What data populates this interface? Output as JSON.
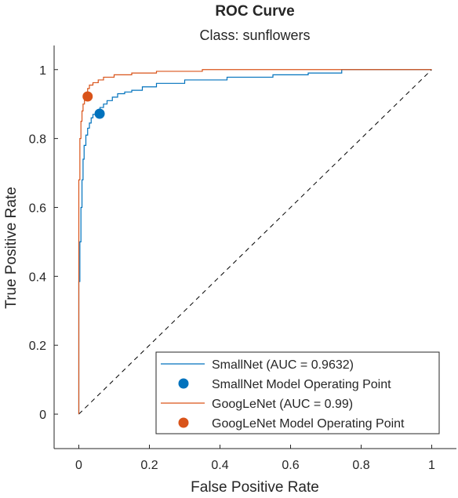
{
  "chart_data": {
    "type": "line",
    "title": "ROC Curve",
    "subtitle": "Class: sunflowers",
    "xlabel": "False Positive Rate",
    "ylabel": "True Positive Rate",
    "xlim": [
      -0.07,
      1.07
    ],
    "ylim": [
      -0.1,
      1.07
    ],
    "xticks": [
      0,
      0.2,
      0.4,
      0.6,
      0.8,
      1
    ],
    "xtick_labels": [
      "0",
      "0.2",
      "0.4",
      "0.6",
      "0.8",
      "1"
    ],
    "yticks": [
      0,
      0.2,
      0.4,
      0.6,
      0.8,
      1
    ],
    "ytick_labels": [
      "0",
      "0.2",
      "0.4",
      "0.6",
      "0.8",
      "1"
    ],
    "grid": false,
    "legend_position": "bottom-right",
    "reference_line": {
      "x": [
        0,
        1
      ],
      "y": [
        0,
        1
      ],
      "style": "dashed",
      "color": "#000000"
    },
    "series": [
      {
        "name": "SmallNet (AUC = 0.9632)",
        "kind": "line",
        "color": "#0072BD",
        "x": [
          0,
          0,
          0.003,
          0.003,
          0.006,
          0.006,
          0.009,
          0.009,
          0.012,
          0.012,
          0.015,
          0.015,
          0.02,
          0.02,
          0.025,
          0.025,
          0.03,
          0.03,
          0.035,
          0.035,
          0.04,
          0.04,
          0.05,
          0.05,
          0.06,
          0.06,
          0.07,
          0.07,
          0.08,
          0.08,
          0.095,
          0.095,
          0.11,
          0.11,
          0.13,
          0.13,
          0.15,
          0.15,
          0.18,
          0.18,
          0.22,
          0.22,
          0.3,
          0.3,
          0.42,
          0.42,
          0.55,
          0.55,
          0.65,
          0.65,
          0.745,
          0.745,
          1
        ],
        "y": [
          0,
          0.385,
          0.385,
          0.5,
          0.5,
          0.6,
          0.6,
          0.68,
          0.68,
          0.74,
          0.74,
          0.78,
          0.78,
          0.81,
          0.81,
          0.83,
          0.83,
          0.845,
          0.845,
          0.86,
          0.86,
          0.87,
          0.87,
          0.88,
          0.88,
          0.89,
          0.89,
          0.9,
          0.9,
          0.91,
          0.91,
          0.92,
          0.92,
          0.93,
          0.93,
          0.935,
          0.935,
          0.94,
          0.94,
          0.95,
          0.95,
          0.96,
          0.96,
          0.97,
          0.97,
          0.978,
          0.978,
          0.985,
          0.985,
          0.99,
          0.99,
          1,
          1
        ]
      },
      {
        "name": "SmallNet Model Operating Point",
        "kind": "point",
        "color": "#0072BD",
        "x": [
          0.059
        ],
        "y": [
          0.872
        ]
      },
      {
        "name": "GoogLeNet (AUC = 0.99)",
        "kind": "line",
        "color": "#D95319",
        "x": [
          0,
          0,
          0.003,
          0.003,
          0.006,
          0.006,
          0.009,
          0.009,
          0.012,
          0.012,
          0.016,
          0.016,
          0.02,
          0.02,
          0.025,
          0.025,
          0.03,
          0.03,
          0.04,
          0.04,
          0.055,
          0.055,
          0.07,
          0.07,
          0.1,
          0.1,
          0.15,
          0.15,
          0.22,
          0.22,
          0.35,
          0.35,
          0.55,
          0.55,
          1
        ],
        "y": [
          0,
          0.68,
          0.68,
          0.8,
          0.8,
          0.85,
          0.85,
          0.88,
          0.88,
          0.9,
          0.9,
          0.915,
          0.915,
          0.93,
          0.93,
          0.945,
          0.945,
          0.955,
          0.955,
          0.962,
          0.962,
          0.97,
          0.97,
          0.978,
          0.978,
          0.985,
          0.985,
          0.99,
          0.99,
          0.995,
          0.995,
          1,
          1,
          1,
          1
        ]
      },
      {
        "name": "GoogLeNet Model Operating Point",
        "kind": "point",
        "color": "#D95319",
        "x": [
          0.025
        ],
        "y": [
          0.922
        ]
      }
    ]
  }
}
